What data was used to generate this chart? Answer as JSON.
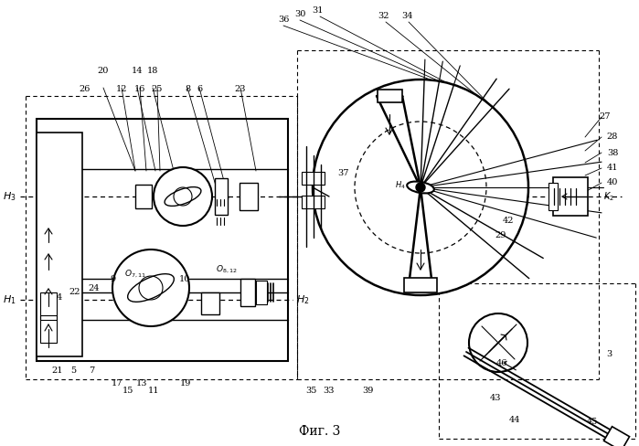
{
  "title": "Фиг. 3",
  "bg_color": "#ffffff",
  "fig_width": 6.99,
  "fig_height": 4.88,
  "dpi": 100
}
